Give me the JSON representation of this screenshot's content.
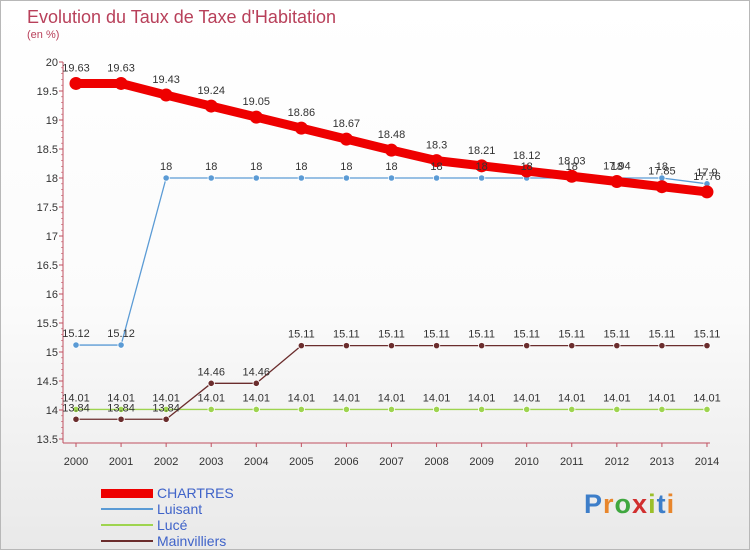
{
  "header": {
    "title": "Evolution du Taux de Taxe d'Habitation",
    "subtitle": "(en %)"
  },
  "logo": {
    "text": "Proxiti"
  },
  "chart_data": {
    "type": "line",
    "title": "Evolution du Taux de Taxe d'Habitation",
    "ylabel": "(en %)",
    "xlabel": "",
    "ylim": [
      13.5,
      20
    ],
    "yticks": [
      13.5,
      14,
      14.5,
      15,
      15.5,
      16,
      16.5,
      17,
      17.5,
      18,
      18.5,
      19,
      19.5,
      20
    ],
    "categories": [
      "2000",
      "2001",
      "2002",
      "2003",
      "2004",
      "2005",
      "2006",
      "2007",
      "2008",
      "2009",
      "2010",
      "2011",
      "2012",
      "2013",
      "2014"
    ],
    "grid": false,
    "legend": "bottom-left",
    "series": [
      {
        "name": "CHARTRES",
        "color": "#ee0000",
        "values": [
          19.63,
          19.63,
          19.43,
          19.24,
          19.05,
          18.86,
          18.67,
          18.48,
          18.3,
          18.21,
          18.12,
          18.03,
          17.94,
          17.85,
          17.76
        ],
        "labels": [
          "19.63",
          "19.63",
          "19.43",
          "19.24",
          "19.05",
          "18.86",
          "18.67",
          "18.48",
          "18.3",
          "18.21",
          "18.12",
          "18.03",
          "17.94",
          "17.85",
          "17.76"
        ]
      },
      {
        "name": "Luisant",
        "color": "#5b9bd5",
        "values": [
          15.12,
          15.12,
          18,
          18,
          18,
          18,
          18,
          18,
          18,
          18,
          18,
          18,
          18,
          18,
          17.9
        ],
        "labels": [
          "15.12",
          "15.12",
          "18",
          "18",
          "18",
          "18",
          "18",
          "18",
          "18",
          "18",
          "18",
          "18",
          "18",
          "18",
          "17.9"
        ]
      },
      {
        "name": "Lucé",
        "color": "#9ed44f",
        "values": [
          14.01,
          14.01,
          14.01,
          14.01,
          14.01,
          14.01,
          14.01,
          14.01,
          14.01,
          14.01,
          14.01,
          14.01,
          14.01,
          14.01,
          14.01
        ],
        "labels": [
          "14.01",
          "14.01",
          "14.01",
          "14.01",
          "14.01",
          "14.01",
          "14.01",
          "14.01",
          "14.01",
          "14.01",
          "14.01",
          "14.01",
          "14.01",
          "14.01",
          "14.01"
        ]
      },
      {
        "name": "Mainvilliers",
        "color": "#6b2d2d",
        "values": [
          13.84,
          13.84,
          13.84,
          14.46,
          14.46,
          15.11,
          15.11,
          15.11,
          15.11,
          15.11,
          15.11,
          15.11,
          15.11,
          15.11,
          15.11
        ],
        "labels": [
          "13.84",
          "13.84",
          "13.84",
          "14.46",
          "14.46",
          "15.11",
          "15.11",
          "15.11",
          "15.11",
          "15.11",
          "15.11",
          "15.11",
          "15.11",
          "15.11",
          "15.11"
        ]
      }
    ]
  }
}
